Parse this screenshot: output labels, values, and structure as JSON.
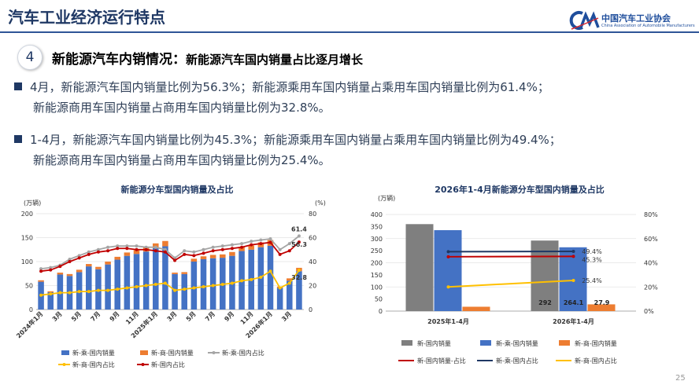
{
  "slide_title": "汽车工业经济运行特点",
  "logo": {
    "cn": "中国汽车工业协会",
    "en": "China Association of Automobile Manufacturers",
    "icon": "caam-logo-icon"
  },
  "section": {
    "number": "4",
    "heading": "新能源汽车内销情况：",
    "subheading": "新能源汽车国内销量占比逐月增长"
  },
  "bullets": [
    {
      "line1": "4月，新能源汽车国内销量比例为56.3%；新能源乘用车国内销量占乘用车国内销量比例为61.4%；",
      "line2": "新能源商用车国内销量占商用车国内销量比例为32.8%。"
    },
    {
      "line1": "1-4月，新能源汽车国内销量比例为45.3%；新能源乘用车国内销量占乘用车国内销量比例为49.4%；",
      "line2": "新能源商用车国内销量占商用车国内销量比例为25.4%。"
    }
  ],
  "page_number": "25",
  "colors": {
    "passenger": "#4472c4",
    "commercial": "#ed7d31",
    "total": "#c00000",
    "passenger_share": "#a5a5a5",
    "commercial_share": "#ffc000",
    "gray_bar": "#7f7f7f",
    "navy": "#1f3864"
  },
  "chart_data": [
    {
      "type": "bar",
      "title": "新能源分车型国内销量及占比",
      "y_unit": "(万辆)",
      "y2_unit": "(%)",
      "ylim": [
        0,
        200
      ],
      "y_ticks": [
        "0",
        "50",
        "100",
        "150",
        "200"
      ],
      "y2lim": [
        0,
        80
      ],
      "y2_ticks": [
        "0",
        "20",
        "40",
        "60",
        "80"
      ],
      "x_tick_labels": [
        "2024年1月",
        "3月",
        "5月",
        "7月",
        "9月",
        "11月",
        "2025年1月",
        "3月",
        "5月",
        "7月",
        "9月",
        "11月",
        "2026年1月",
        "3月"
      ],
      "bar_categories_count": 28,
      "series": [
        {
          "name": "新-乘-国内销量",
          "kind": "bar",
          "values": [
            58,
            36,
            73,
            70,
            78,
            90,
            84,
            94,
            104,
            112,
            116,
            121,
            128,
            132,
            74,
            74,
            100,
            105,
            107,
            108,
            112,
            122,
            125,
            130,
            133,
            45,
            60,
            80
          ]
        },
        {
          "name": "新-商-国内销量",
          "kind": "bar",
          "values": [
            3,
            2,
            4,
            4,
            5,
            5,
            5,
            6,
            6,
            7,
            8,
            9,
            10,
            11,
            3,
            4,
            6,
            6,
            7,
            7,
            8,
            9,
            9,
            10,
            12,
            3,
            5,
            7
          ]
        },
        {
          "name": "新-乘-国内占比",
          "kind": "line",
          "axis": "y2",
          "values": [
            34,
            35,
            37,
            42,
            45,
            48,
            50,
            52,
            53,
            53,
            53,
            52,
            52,
            50,
            43,
            49,
            48,
            50,
            52,
            53,
            54,
            55,
            57,
            58,
            59,
            50,
            55,
            61.4
          ]
        },
        {
          "name": "新-商-国内占比",
          "kind": "line",
          "axis": "y2",
          "values": [
            12,
            13,
            14,
            14,
            15,
            15,
            16,
            16,
            17,
            18,
            19,
            20,
            21,
            22,
            16,
            17,
            18,
            19,
            20,
            21,
            22,
            24,
            25,
            27,
            32,
            18,
            22,
            32.8
          ]
        },
        {
          "name": "新-国内占比",
          "kind": "line",
          "axis": "y2",
          "values": [
            32,
            33,
            36,
            40,
            43,
            46,
            48,
            49,
            51,
            51,
            50,
            50,
            49,
            48,
            41,
            46,
            45,
            47,
            49,
            50,
            51,
            52,
            54,
            55,
            56,
            46,
            49,
            56.3
          ]
        }
      ],
      "data_labels": [
        "61.4",
        "56.3",
        "32.8"
      ]
    },
    {
      "type": "bar",
      "title": "2026年1-4月新能源分车型国内销量及占比",
      "y_unit": "(万辆)",
      "ylim": [
        0,
        400
      ],
      "y_ticks": [
        "0",
        "50",
        "100",
        "150",
        "200",
        "250",
        "300",
        "350",
        "400"
      ],
      "y2lim": [
        0,
        80
      ],
      "y2_ticks": [
        "0%",
        "20%",
        "40%",
        "60%",
        "80%"
      ],
      "categories": [
        "2025年1-4月",
        "2026年1-4月"
      ],
      "series": [
        {
          "name": "新-国内销量",
          "kind": "bar",
          "values": [
            360,
            292
          ]
        },
        {
          "name": "新-乘-国内销量",
          "kind": "bar",
          "values": [
            335,
            264.1
          ]
        },
        {
          "name": "新-商-国内销量",
          "kind": "bar",
          "values": [
            18,
            27.9
          ]
        },
        {
          "name": "新-国内销量-占比",
          "kind": "line",
          "axis": "y2",
          "values": [
            45.0,
            45.3
          ]
        },
        {
          "name": "新-乘-国内占比",
          "kind": "line",
          "axis": "y2",
          "values": [
            49.2,
            49.4
          ]
        },
        {
          "name": "新-商-国内占比",
          "kind": "line",
          "axis": "y2",
          "values": [
            20.0,
            25.4
          ]
        }
      ],
      "bar_value_labels": [
        "292",
        "264.1",
        "27.9"
      ],
      "line_value_labels": [
        "49.4%",
        "45.3%",
        "25.4%"
      ]
    }
  ]
}
